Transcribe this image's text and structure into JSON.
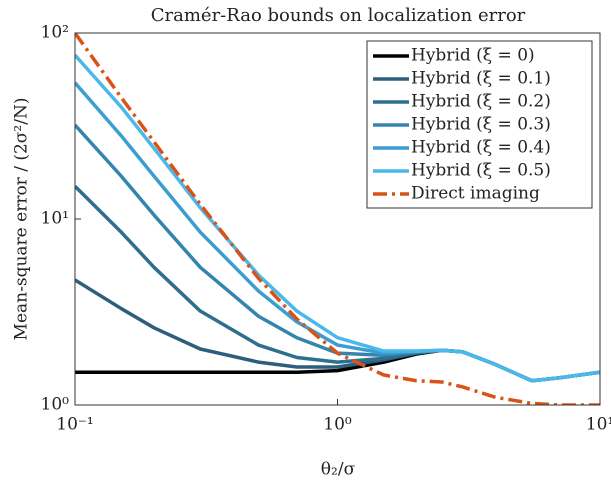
{
  "chart_data": {
    "type": "line",
    "title": "Cramér-Rao bounds on localization error",
    "xlabel": "θ₂/σ",
    "ylabel": "Mean-square error / (2σ²/N)",
    "xscale": "log",
    "yscale": "log",
    "xlim": [
      0.1,
      10
    ],
    "ylim": [
      1,
      100
    ],
    "xticks": [
      {
        "value": 0.1,
        "label": "10⁻¹"
      },
      {
        "value": 1,
        "label": "10⁰"
      },
      {
        "value": 10,
        "label": "10¹"
      }
    ],
    "yticks": [
      {
        "value": 1,
        "label": "10⁰"
      },
      {
        "value": 10,
        "label": "10¹"
      },
      {
        "value": 100,
        "label": "10²"
      }
    ],
    "legend": "upper right",
    "x": [
      0.1,
      0.15,
      0.2,
      0.3,
      0.5,
      0.7,
      1,
      1.5,
      2,
      2.5,
      3,
      4,
      5.5,
      7,
      10
    ],
    "series": [
      {
        "name": "Hybrid (ξ = 0)",
        "color": "#000000",
        "dash": "solid",
        "values": [
          1.5,
          1.5,
          1.5,
          1.5,
          1.5,
          1.5,
          1.53,
          1.7,
          1.88,
          1.97,
          1.93,
          1.65,
          1.35,
          1.4,
          1.5
        ]
      },
      {
        "name": "Hybrid (ξ = 0.1)",
        "color": "#2d5f7c",
        "dash": "solid",
        "values": [
          4.7,
          3.3,
          2.6,
          2.0,
          1.7,
          1.6,
          1.6,
          1.75,
          1.9,
          1.97,
          1.93,
          1.65,
          1.35,
          1.4,
          1.5
        ]
      },
      {
        "name": "Hybrid (ξ = 0.2)",
        "color": "#2e6e90",
        "dash": "solid",
        "values": [
          15,
          8.5,
          5.5,
          3.2,
          2.1,
          1.8,
          1.7,
          1.78,
          1.91,
          1.97,
          1.93,
          1.65,
          1.35,
          1.4,
          1.5
        ]
      },
      {
        "name": "Hybrid (ξ = 0.3)",
        "color": "#3485ae",
        "dash": "solid",
        "values": [
          32,
          17,
          10.5,
          5.5,
          3.0,
          2.3,
          1.9,
          1.85,
          1.93,
          1.97,
          1.93,
          1.65,
          1.35,
          1.4,
          1.5
        ]
      },
      {
        "name": "Hybrid (ξ = 0.4)",
        "color": "#3c9ed0",
        "dash": "solid",
        "values": [
          54,
          28,
          17,
          8.5,
          4.1,
          2.8,
          2.1,
          1.9,
          1.94,
          1.97,
          1.93,
          1.65,
          1.35,
          1.4,
          1.5
        ]
      },
      {
        "name": "Hybrid (ξ = 0.5)",
        "color": "#4ab8e8",
        "dash": "solid",
        "values": [
          76,
          40,
          24,
          11.5,
          5.0,
          3.2,
          2.3,
          1.95,
          1.95,
          1.97,
          1.93,
          1.65,
          1.35,
          1.4,
          1.5
        ]
      },
      {
        "name": "Direct imaging",
        "color": "#d95319",
        "dash": "dashdot",
        "values": [
          100,
          45,
          26,
          12,
          4.8,
          2.9,
          1.9,
          1.45,
          1.35,
          1.33,
          1.25,
          1.1,
          1.02,
          1.0,
          1.0
        ]
      }
    ]
  }
}
